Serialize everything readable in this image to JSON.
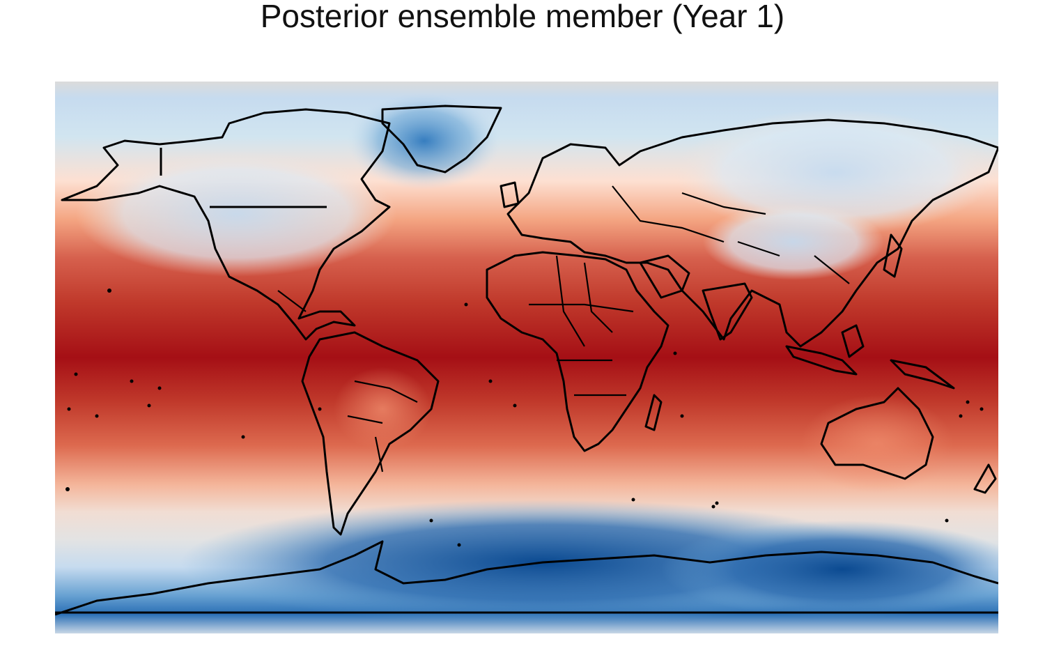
{
  "figure": {
    "title": "Posterior ensemble member (Year 1)"
  },
  "map": {
    "projection": "equirectangular",
    "extent": {
      "lon": [
        -180,
        180
      ],
      "lat": [
        -90,
        90
      ]
    },
    "field": {
      "colormap": "diverging red-white-blue",
      "warm_color": "#a50f15",
      "mid_color": "#e3e3e3",
      "cool_color": "#08519c",
      "pattern": "warm tropics/equatorial band, cool polar regions; coldest over Antarctica, Greenland and Siberia"
    },
    "overlay": {
      "coastlines": true,
      "country_borders": true,
      "line_color": "#000000"
    }
  }
}
